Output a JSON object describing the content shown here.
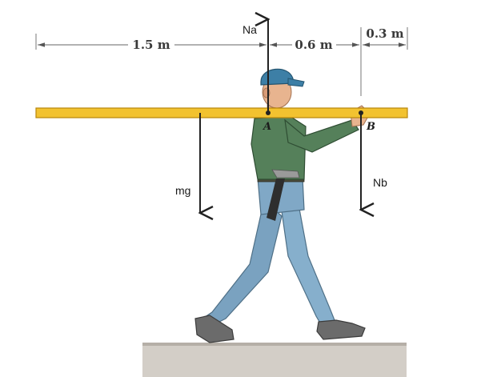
{
  "dimensions": {
    "seg_left": "1.5 m",
    "seg_mid": "0.6 m",
    "seg_right": "0.3 m"
  },
  "forces": {
    "normal_a": "Na",
    "normal_b": "Nb",
    "weight": "mg"
  },
  "points": {
    "a": "A",
    "b": "B"
  },
  "colors": {
    "beam": "#f2c230",
    "beam_edge": "#b8860b",
    "shirt": "#4f7a4d",
    "pants": "#7ea6c4",
    "cap": "#3d7fa6",
    "skin": "#e8b48f",
    "boots": "#6a6a6a",
    "ground": "#c9c4bd"
  }
}
